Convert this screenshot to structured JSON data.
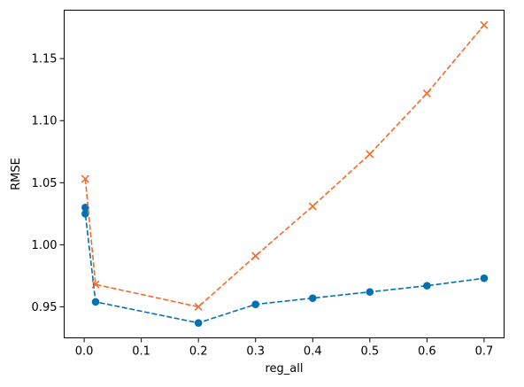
{
  "chart_data": {
    "type": "line",
    "xlabel": "reg_all",
    "ylabel": "RMSE",
    "xlim": [
      -0.035,
      0.735
    ],
    "ylim": [
      0.925,
      1.189
    ],
    "x_ticks": [
      0.0,
      0.1,
      0.2,
      0.3,
      0.4,
      0.5,
      0.6,
      0.7
    ],
    "x_tick_labels": [
      "0.0",
      "0.1",
      "0.2",
      "0.3",
      "0.4",
      "0.5",
      "0.6",
      "0.7"
    ],
    "y_ticks": [
      0.95,
      1.0,
      1.05,
      1.1,
      1.15
    ],
    "y_tick_labels": [
      "0.95",
      "1.00",
      "1.05",
      "1.10",
      "1.15"
    ],
    "grid": false,
    "series": [
      {
        "color": "#0072b2",
        "marker": "circle",
        "line_style": "dashed",
        "x": [
          0.002,
          0.002,
          0.02,
          0.2,
          0.3,
          0.4,
          0.5,
          0.6,
          0.7
        ],
        "y": [
          1.03,
          1.025,
          0.954,
          0.937,
          0.952,
          0.957,
          0.962,
          0.967,
          0.973
        ]
      },
      {
        "color": "#f26b2a",
        "marker": "x",
        "line_style": "dashed",
        "x": [
          0.002,
          0.02,
          0.2,
          0.3,
          0.4,
          0.5,
          0.6,
          0.7
        ],
        "y": [
          1.053,
          0.968,
          0.95,
          0.991,
          1.031,
          1.073,
          1.122,
          1.177
        ]
      }
    ]
  }
}
